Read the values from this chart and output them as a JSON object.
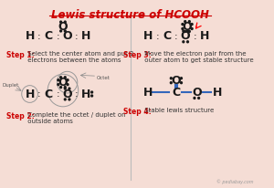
{
  "title": "Lewis structure of HCOOH",
  "title_color": "#cc0000",
  "bg_color": "#f5ddd5",
  "atom_color": "#1a1a1a",
  "step_label_color": "#cc0000",
  "step_text_color": "#333333",
  "bond_color": "#3366bb",
  "watermark": "© pediabay.com",
  "step1_title": "Step 1:",
  "step1_text": " Select the center atom and put 2\n electrons between the atoms",
  "step2_title": "Step 2:",
  "step2_text": " Complete the octet / duplet on\n outside atoms",
  "step3_title": "Step 3:",
  "step3_text": " Move the electron pair from the\n outer atom to get stable structure",
  "step4_title": "Step 4:",
  "step4_text": " Stable lewis structure"
}
